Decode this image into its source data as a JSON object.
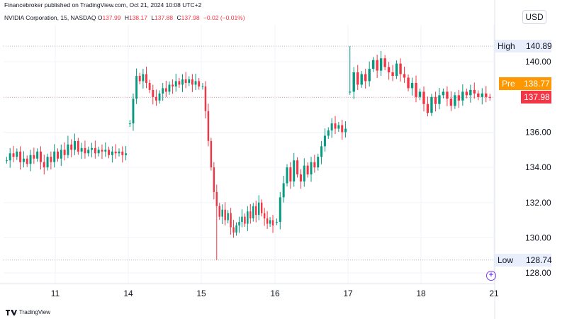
{
  "header": {
    "published": "Financebroker published on TradingView.com, Oct 21, 2024 10:08 UTC+2",
    "symbol": "NVIDIA Corporation, 15, NASDAQ",
    "o_label": "O",
    "o_value": "137.99",
    "h_label": "H",
    "h_value": "138.17",
    "l_label": "L",
    "l_value": "137.88",
    "c_label": "C",
    "c_value": "137.98",
    "change": "−0.02 (−0.01%)",
    "currency": "USD"
  },
  "footer": {
    "brand": "TradingView"
  },
  "colors": {
    "up": "#089981",
    "down": "#f23645",
    "pre": "#ff9800",
    "marker": "#bfc3cc",
    "grid": "#f0f3fa"
  },
  "chart_data": {
    "type": "candlestick",
    "interval": "15",
    "x_ticks": [
      "11",
      "14",
      "15",
      "16",
      "17",
      "18",
      "21"
    ],
    "y_ticks": [
      128,
      130,
      132,
      134,
      136,
      138,
      140
    ],
    "y_tick_labels": [
      "128.00",
      "130.00",
      "132.00",
      "134.00",
      "136.00",
      "",
      "140.00"
    ],
    "ylim": [
      127.4,
      141.9
    ],
    "high": {
      "label": "High",
      "value": 140.89
    },
    "low": {
      "label": "Low",
      "value": 128.74
    },
    "pre": {
      "label": "Pre",
      "value": 138.77
    },
    "last": {
      "value": 137.98
    },
    "sessions": [
      {
        "day": "11",
        "open": 134.4,
        "close": 134.8,
        "high": 135.8,
        "low": 133.6,
        "points": [
          134.4,
          134.8,
          134.6,
          134.9,
          134.3,
          134.5,
          134.2,
          134.7,
          134.5,
          134.9,
          134.3,
          134.0,
          134.6,
          134.3,
          134.9,
          134.5,
          135.0,
          134.7,
          135.3,
          135.0,
          135.5,
          134.9,
          135.1,
          134.8,
          135.0,
          135.1,
          134.8,
          135.0,
          134.9,
          135.0,
          134.7,
          134.9,
          134.8,
          134.9,
          134.7,
          134.8
        ]
      },
      {
        "day": "14",
        "open": 136.5,
        "close": 138.6,
        "high": 139.5,
        "low": 136.3,
        "points": [
          136.5,
          137.9,
          139.2,
          138.9,
          139.3,
          138.8,
          138.4,
          138.0,
          137.8,
          138.2,
          138.5,
          138.3,
          138.7,
          138.6,
          138.9,
          138.7,
          139.0,
          138.8,
          139.0,
          138.7,
          138.9,
          138.6
        ]
      },
      {
        "day": "15",
        "open": 138.6,
        "close": 130.5,
        "high": 138.8,
        "low": 128.74,
        "points": [
          138.6,
          137.2,
          135.5,
          134.0,
          132.6,
          131.8,
          131.2,
          131.6,
          131.0,
          131.4,
          130.6,
          130.3,
          130.7,
          130.9,
          131.2,
          130.8,
          131.5,
          131.1,
          131.8,
          131.3,
          132.0,
          131.4,
          131.1,
          130.8,
          131.0,
          130.7
        ]
      },
      {
        "day": "16",
        "open": 130.9,
        "close": 136.2,
        "high": 136.6,
        "low": 130.6,
        "points": [
          130.9,
          132.3,
          133.1,
          134.0,
          133.2,
          134.4,
          133.6,
          133.2,
          134.1,
          133.6,
          134.3,
          134.0,
          134.6,
          135.2,
          135.8,
          136.1,
          136.5,
          136.2,
          136.4,
          136.0,
          136.2
        ]
      },
      {
        "day": "17",
        "open": 138.3,
        "close": 138.6,
        "high": 140.89,
        "low": 137.4,
        "points": [
          138.3,
          139.4,
          138.7,
          139.3,
          138.9,
          139.6,
          140.1,
          139.5,
          140.2,
          139.7,
          139.4,
          139.2,
          139.9,
          139.3,
          139.1,
          138.5,
          138.8,
          138.0,
          138.3,
          137.6,
          137.1,
          138.0,
          137.6,
          138.1,
          138.3,
          137.9,
          137.5,
          138.1,
          137.8,
          138.3,
          138.1,
          138.4,
          138.2,
          138.0,
          138.2,
          138.0,
          137.98
        ]
      }
    ]
  }
}
